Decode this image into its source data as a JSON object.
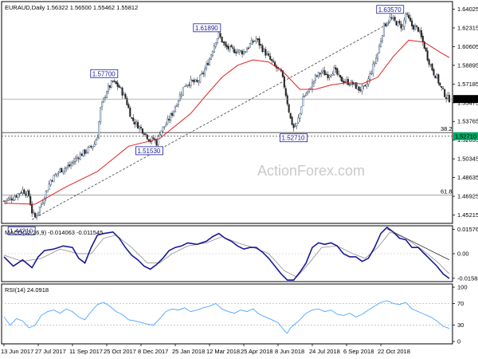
{
  "chart_data": [
    {
      "type": "candlestick",
      "header": "EURAUD,Daily  1.56322 1.56500 1.55462 1.55812",
      "watermark": "ActionForex.com",
      "y_ticks": [
        "1.64025",
        "1.62315",
        "1.60605",
        "1.58895",
        "1.57185",
        "1.55475",
        "1.53765",
        "1.52055",
        "1.50345",
        "1.48635",
        "1.46925",
        "1.45215"
      ],
      "ylim": [
        1.4445,
        1.6472
      ],
      "current_price": "1.55812",
      "current_price_color": "#000000",
      "support_price": "1.52710",
      "support_price_color": "#00aa66",
      "close_path": [
        [
          0,
          1.465
        ],
        [
          6,
          1.468
        ],
        [
          12,
          1.475
        ],
        [
          16,
          1.47
        ],
        [
          18,
          1.455
        ],
        [
          20,
          1.45
        ],
        [
          24,
          1.462
        ],
        [
          30,
          1.484
        ],
        [
          36,
          1.493
        ],
        [
          42,
          1.497
        ],
        [
          48,
          1.506
        ],
        [
          54,
          1.512
        ],
        [
          58,
          1.517
        ],
        [
          60,
          1.525
        ],
        [
          62,
          1.549
        ],
        [
          66,
          1.566
        ],
        [
          70,
          1.574
        ],
        [
          74,
          1.569
        ],
        [
          78,
          1.559
        ],
        [
          82,
          1.54
        ],
        [
          86,
          1.534
        ],
        [
          90,
          1.528
        ],
        [
          94,
          1.52
        ],
        [
          96,
          1.522
        ],
        [
          98,
          1.518
        ],
        [
          100,
          1.528
        ],
        [
          104,
          1.535
        ],
        [
          108,
          1.545
        ],
        [
          112,
          1.558
        ],
        [
          116,
          1.571
        ],
        [
          120,
          1.574
        ],
        [
          124,
          1.573
        ],
        [
          128,
          1.582
        ],
        [
          132,
          1.595
        ],
        [
          136,
          1.612
        ],
        [
          138,
          1.617
        ],
        [
          142,
          1.606
        ],
        [
          146,
          1.603
        ],
        [
          150,
          1.602
        ],
        [
          154,
          1.601
        ],
        [
          158,
          1.608
        ],
        [
          162,
          1.613
        ],
        [
          166,
          1.604
        ],
        [
          170,
          1.596
        ],
        [
          174,
          1.588
        ],
        [
          178,
          1.582
        ],
        [
          180,
          1.57
        ],
        [
          182,
          1.555
        ],
        [
          184,
          1.54
        ],
        [
          186,
          1.532
        ],
        [
          188,
          1.535
        ],
        [
          190,
          1.545
        ],
        [
          192,
          1.56
        ],
        [
          196,
          1.566
        ],
        [
          200,
          1.578
        ],
        [
          204,
          1.583
        ],
        [
          208,
          1.58
        ],
        [
          212,
          1.585
        ],
        [
          216,
          1.576
        ],
        [
          220,
          1.574
        ],
        [
          224,
          1.572
        ],
        [
          228,
          1.567
        ],
        [
          232,
          1.568
        ],
        [
          236,
          1.584
        ],
        [
          240,
          1.6
        ],
        [
          244,
          1.625
        ],
        [
          248,
          1.632
        ],
        [
          252,
          1.628
        ],
        [
          256,
          1.624
        ],
        [
          258,
          1.636
        ],
        [
          262,
          1.625
        ],
        [
          266,
          1.622
        ],
        [
          270,
          1.606
        ],
        [
          272,
          1.596
        ],
        [
          276,
          1.582
        ],
        [
          278,
          1.578
        ],
        [
          280,
          1.57
        ],
        [
          282,
          1.565
        ],
        [
          284,
          1.56
        ],
        [
          286,
          1.558
        ]
      ],
      "ma_path": [
        [
          0,
          1.463
        ],
        [
          20,
          1.462
        ],
        [
          40,
          1.478
        ],
        [
          60,
          1.492
        ],
        [
          80,
          1.515
        ],
        [
          100,
          1.522
        ],
        [
          120,
          1.545
        ],
        [
          130,
          1.562
        ],
        [
          140,
          1.578
        ],
        [
          150,
          1.589
        ],
        [
          160,
          1.594
        ],
        [
          170,
          1.592
        ],
        [
          180,
          1.582
        ],
        [
          190,
          1.567
        ],
        [
          200,
          1.567
        ],
        [
          210,
          1.571
        ],
        [
          220,
          1.573
        ],
        [
          230,
          1.572
        ],
        [
          240,
          1.578
        ],
        [
          250,
          1.597
        ],
        [
          260,
          1.612
        ],
        [
          270,
          1.61
        ],
        [
          280,
          1.601
        ],
        [
          286,
          1.596
        ]
      ],
      "ma_color": "#e02020",
      "candle_up_color": "#3a5a8a",
      "candle_down_color": "#333333",
      "trendline": {
        "x": [
          18,
          248
        ],
        "y": [
          1.448,
          1.628
        ],
        "color": "#555555"
      },
      "hlines": [
        {
          "value": 1.5275,
          "label": "38.2",
          "color": "#444444"
        },
        {
          "value": 1.4705,
          "label": "61.8",
          "color": "#888888"
        }
      ],
      "annotations": [
        {
          "text": "1.44210",
          "x": 18,
          "y": 1.4421,
          "pos": "below-left"
        },
        {
          "text": "1.57700",
          "x": 70,
          "y": 1.577,
          "pos": "above-left"
        },
        {
          "text": "1.51530",
          "x": 100,
          "y": 1.5153,
          "pos": "below-left"
        },
        {
          "text": "1.61890",
          "x": 136,
          "y": 1.6189,
          "pos": "above-left"
        },
        {
          "text": "1.52710",
          "x": 186,
          "y": 1.5271,
          "pos": "below-center"
        },
        {
          "text": "1.63570",
          "x": 248,
          "y": 1.6357,
          "pos": "above-center"
        }
      ]
    },
    {
      "type": "line",
      "header": "MACD(12,26,9) -0.014063 -0.011545",
      "y_ticks": [
        "0.015762",
        "0.00",
        "-0.015834"
      ],
      "ylim": [
        -0.018,
        0.018
      ],
      "macd_path": [
        [
          0,
          -0.002
        ],
        [
          6,
          -0.008
        ],
        [
          12,
          -0.004
        ],
        [
          18,
          -0.009
        ],
        [
          22,
          -0.002
        ],
        [
          26,
          0.002
        ],
        [
          32,
          0.003
        ],
        [
          38,
          0.005
        ],
        [
          44,
          0.004
        ],
        [
          48,
          -0.003
        ],
        [
          52,
          -0.006
        ],
        [
          56,
          0.004
        ],
        [
          60,
          0.012
        ],
        [
          64,
          0.013
        ],
        [
          70,
          0.014
        ],
        [
          74,
          0.01
        ],
        [
          78,
          0.004
        ],
        [
          82,
          -0.001
        ],
        [
          86,
          -0.004
        ],
        [
          90,
          -0.008
        ],
        [
          94,
          -0.01
        ],
        [
          98,
          -0.007
        ],
        [
          102,
          -0.003
        ],
        [
          106,
          0.002
        ],
        [
          110,
          0.004
        ],
        [
          114,
          0.005
        ],
        [
          118,
          0.007
        ],
        [
          124,
          0.006
        ],
        [
          130,
          0.008
        ],
        [
          134,
          0.011
        ],
        [
          138,
          0.013
        ],
        [
          142,
          0.01
        ],
        [
          146,
          0.008
        ],
        [
          150,
          0.005
        ],
        [
          154,
          0.003
        ],
        [
          158,
          0.004
        ],
        [
          162,
          0.004
        ],
        [
          166,
          0.001
        ],
        [
          170,
          -0.003
        ],
        [
          174,
          -0.008
        ],
        [
          178,
          -0.013
        ],
        [
          182,
          -0.017
        ],
        [
          186,
          -0.017
        ],
        [
          190,
          -0.012
        ],
        [
          194,
          -0.006
        ],
        [
          198,
          0.004
        ],
        [
          202,
          0.007
        ],
        [
          206,
          0.006
        ],
        [
          210,
          0.007
        ],
        [
          214,
          0.005
        ],
        [
          218,
          0.0
        ],
        [
          222,
          -0.002
        ],
        [
          226,
          -0.002
        ],
        [
          230,
          -0.005
        ],
        [
          234,
          -0.003
        ],
        [
          238,
          0.004
        ],
        [
          242,
          0.013
        ],
        [
          246,
          0.017
        ],
        [
          250,
          0.014
        ],
        [
          254,
          0.01
        ],
        [
          258,
          0.009
        ],
        [
          262,
          0.004
        ],
        [
          266,
          0.004
        ],
        [
          270,
          0.0
        ],
        [
          274,
          -0.004
        ],
        [
          278,
          -0.008
        ],
        [
          282,
          -0.013
        ],
        [
          286,
          -0.016
        ]
      ],
      "signal_path": [
        [
          0,
          -0.001
        ],
        [
          12,
          -0.005
        ],
        [
          24,
          -0.003
        ],
        [
          36,
          0.003
        ],
        [
          48,
          0.0
        ],
        [
          56,
          0.0
        ],
        [
          64,
          0.01
        ],
        [
          72,
          0.012
        ],
        [
          82,
          0.004
        ],
        [
          92,
          -0.006
        ],
        [
          100,
          -0.006
        ],
        [
          108,
          0.0
        ],
        [
          118,
          0.005
        ],
        [
          130,
          0.007
        ],
        [
          140,
          0.011
        ],
        [
          150,
          0.007
        ],
        [
          160,
          0.004
        ],
        [
          170,
          0.0
        ],
        [
          180,
          -0.011
        ],
        [
          188,
          -0.015
        ],
        [
          196,
          -0.006
        ],
        [
          204,
          0.004
        ],
        [
          214,
          0.005
        ],
        [
          224,
          0.0
        ],
        [
          232,
          -0.003
        ],
        [
          240,
          0.004
        ],
        [
          248,
          0.014
        ],
        [
          258,
          0.01
        ],
        [
          268,
          0.003
        ],
        [
          278,
          -0.005
        ],
        [
          286,
          -0.013
        ]
      ],
      "trendline": {
        "x": [
          246,
          286
        ],
        "y": [
          0.016,
          -0.004
        ]
      },
      "macd_color": "#1a1a99",
      "signal_color": "#999999"
    },
    {
      "type": "line",
      "header": "RSI(14) 24.0918",
      "y_ticks": [
        "100",
        "70",
        "30",
        "0"
      ],
      "ylim": [
        0,
        100
      ],
      "levels": [
        70,
        30
      ],
      "rsi_path": [
        [
          0,
          45
        ],
        [
          4,
          30
        ],
        [
          8,
          42
        ],
        [
          12,
          38
        ],
        [
          16,
          25
        ],
        [
          20,
          30
        ],
        [
          24,
          48
        ],
        [
          28,
          55
        ],
        [
          32,
          58
        ],
        [
          36,
          52
        ],
        [
          40,
          60
        ],
        [
          44,
          55
        ],
        [
          48,
          45
        ],
        [
          52,
          40
        ],
        [
          56,
          55
        ],
        [
          60,
          68
        ],
        [
          64,
          72
        ],
        [
          68,
          65
        ],
        [
          72,
          55
        ],
        [
          76,
          50
        ],
        [
          80,
          40
        ],
        [
          84,
          38
        ],
        [
          88,
          35
        ],
        [
          92,
          32
        ],
        [
          96,
          30
        ],
        [
          100,
          42
        ],
        [
          104,
          55
        ],
        [
          108,
          60
        ],
        [
          112,
          58
        ],
        [
          116,
          62
        ],
        [
          120,
          55
        ],
        [
          124,
          58
        ],
        [
          128,
          62
        ],
        [
          132,
          65
        ],
        [
          136,
          70
        ],
        [
          140,
          60
        ],
        [
          144,
          55
        ],
        [
          148,
          52
        ],
        [
          152,
          58
        ],
        [
          156,
          55
        ],
        [
          160,
          60
        ],
        [
          164,
          50
        ],
        [
          168,
          45
        ],
        [
          172,
          40
        ],
        [
          176,
          35
        ],
        [
          180,
          20
        ],
        [
          182,
          15
        ],
        [
          184,
          25
        ],
        [
          186,
          30
        ],
        [
          190,
          40
        ],
        [
          194,
          52
        ],
        [
          198,
          58
        ],
        [
          202,
          60
        ],
        [
          206,
          55
        ],
        [
          210,
          58
        ],
        [
          214,
          50
        ],
        [
          218,
          48
        ],
        [
          222,
          52
        ],
        [
          226,
          45
        ],
        [
          230,
          50
        ],
        [
          234,
          58
        ],
        [
          238,
          65
        ],
        [
          242,
          72
        ],
        [
          246,
          75
        ],
        [
          250,
          70
        ],
        [
          254,
          68
        ],
        [
          258,
          72
        ],
        [
          262,
          60
        ],
        [
          266,
          55
        ],
        [
          270,
          50
        ],
        [
          274,
          45
        ],
        [
          278,
          38
        ],
        [
          282,
          28
        ],
        [
          286,
          24
        ]
      ],
      "rsi_color": "#4da6ff"
    }
  ],
  "x_axis": {
    "labels": [
      "13 Jun 2017",
      "27 Jul 2017",
      "11 Sep 2017",
      "25 Oct 2017",
      "8 Dec 2017",
      "25 Jan 2018",
      "12 Mar 2018",
      "25 Apr 2018",
      "8 Jun 2018",
      "24 Jul 2018",
      "6 Sep 2018",
      "22 Oct 2018"
    ],
    "bars": [
      0,
      22,
      44,
      66,
      88,
      110,
      132,
      154,
      176,
      198,
      220,
      242
    ],
    "total_bars": 287
  }
}
